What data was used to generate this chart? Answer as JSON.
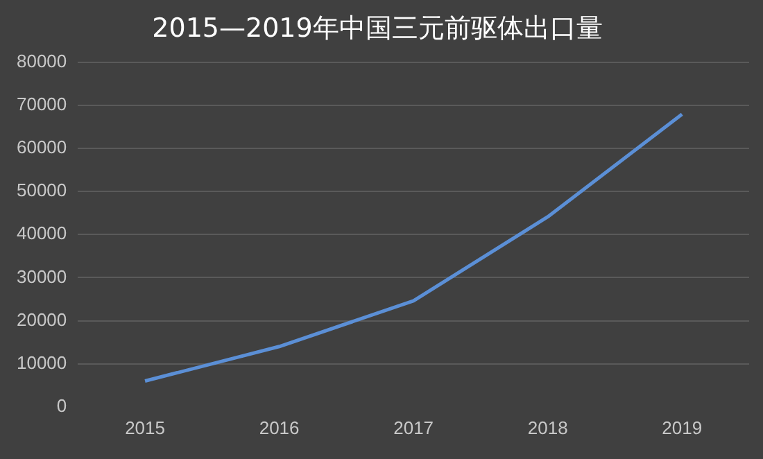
{
  "chart_data": {
    "type": "line",
    "title": "2015—2019年中国三元前驱体出口量",
    "categories": [
      "2015",
      "2016",
      "2017",
      "2018",
      "2019"
    ],
    "series": [
      {
        "color": "#5b8fd6",
        "values": [
          6000,
          14000,
          24600,
          44100,
          67900
        ]
      }
    ],
    "ylim": [
      0,
      80000
    ],
    "yticks": [
      0,
      10000,
      20000,
      30000,
      40000,
      50000,
      60000,
      70000,
      80000
    ],
    "grid": "y",
    "legend": false,
    "marker": "none",
    "line_style": "solid"
  }
}
